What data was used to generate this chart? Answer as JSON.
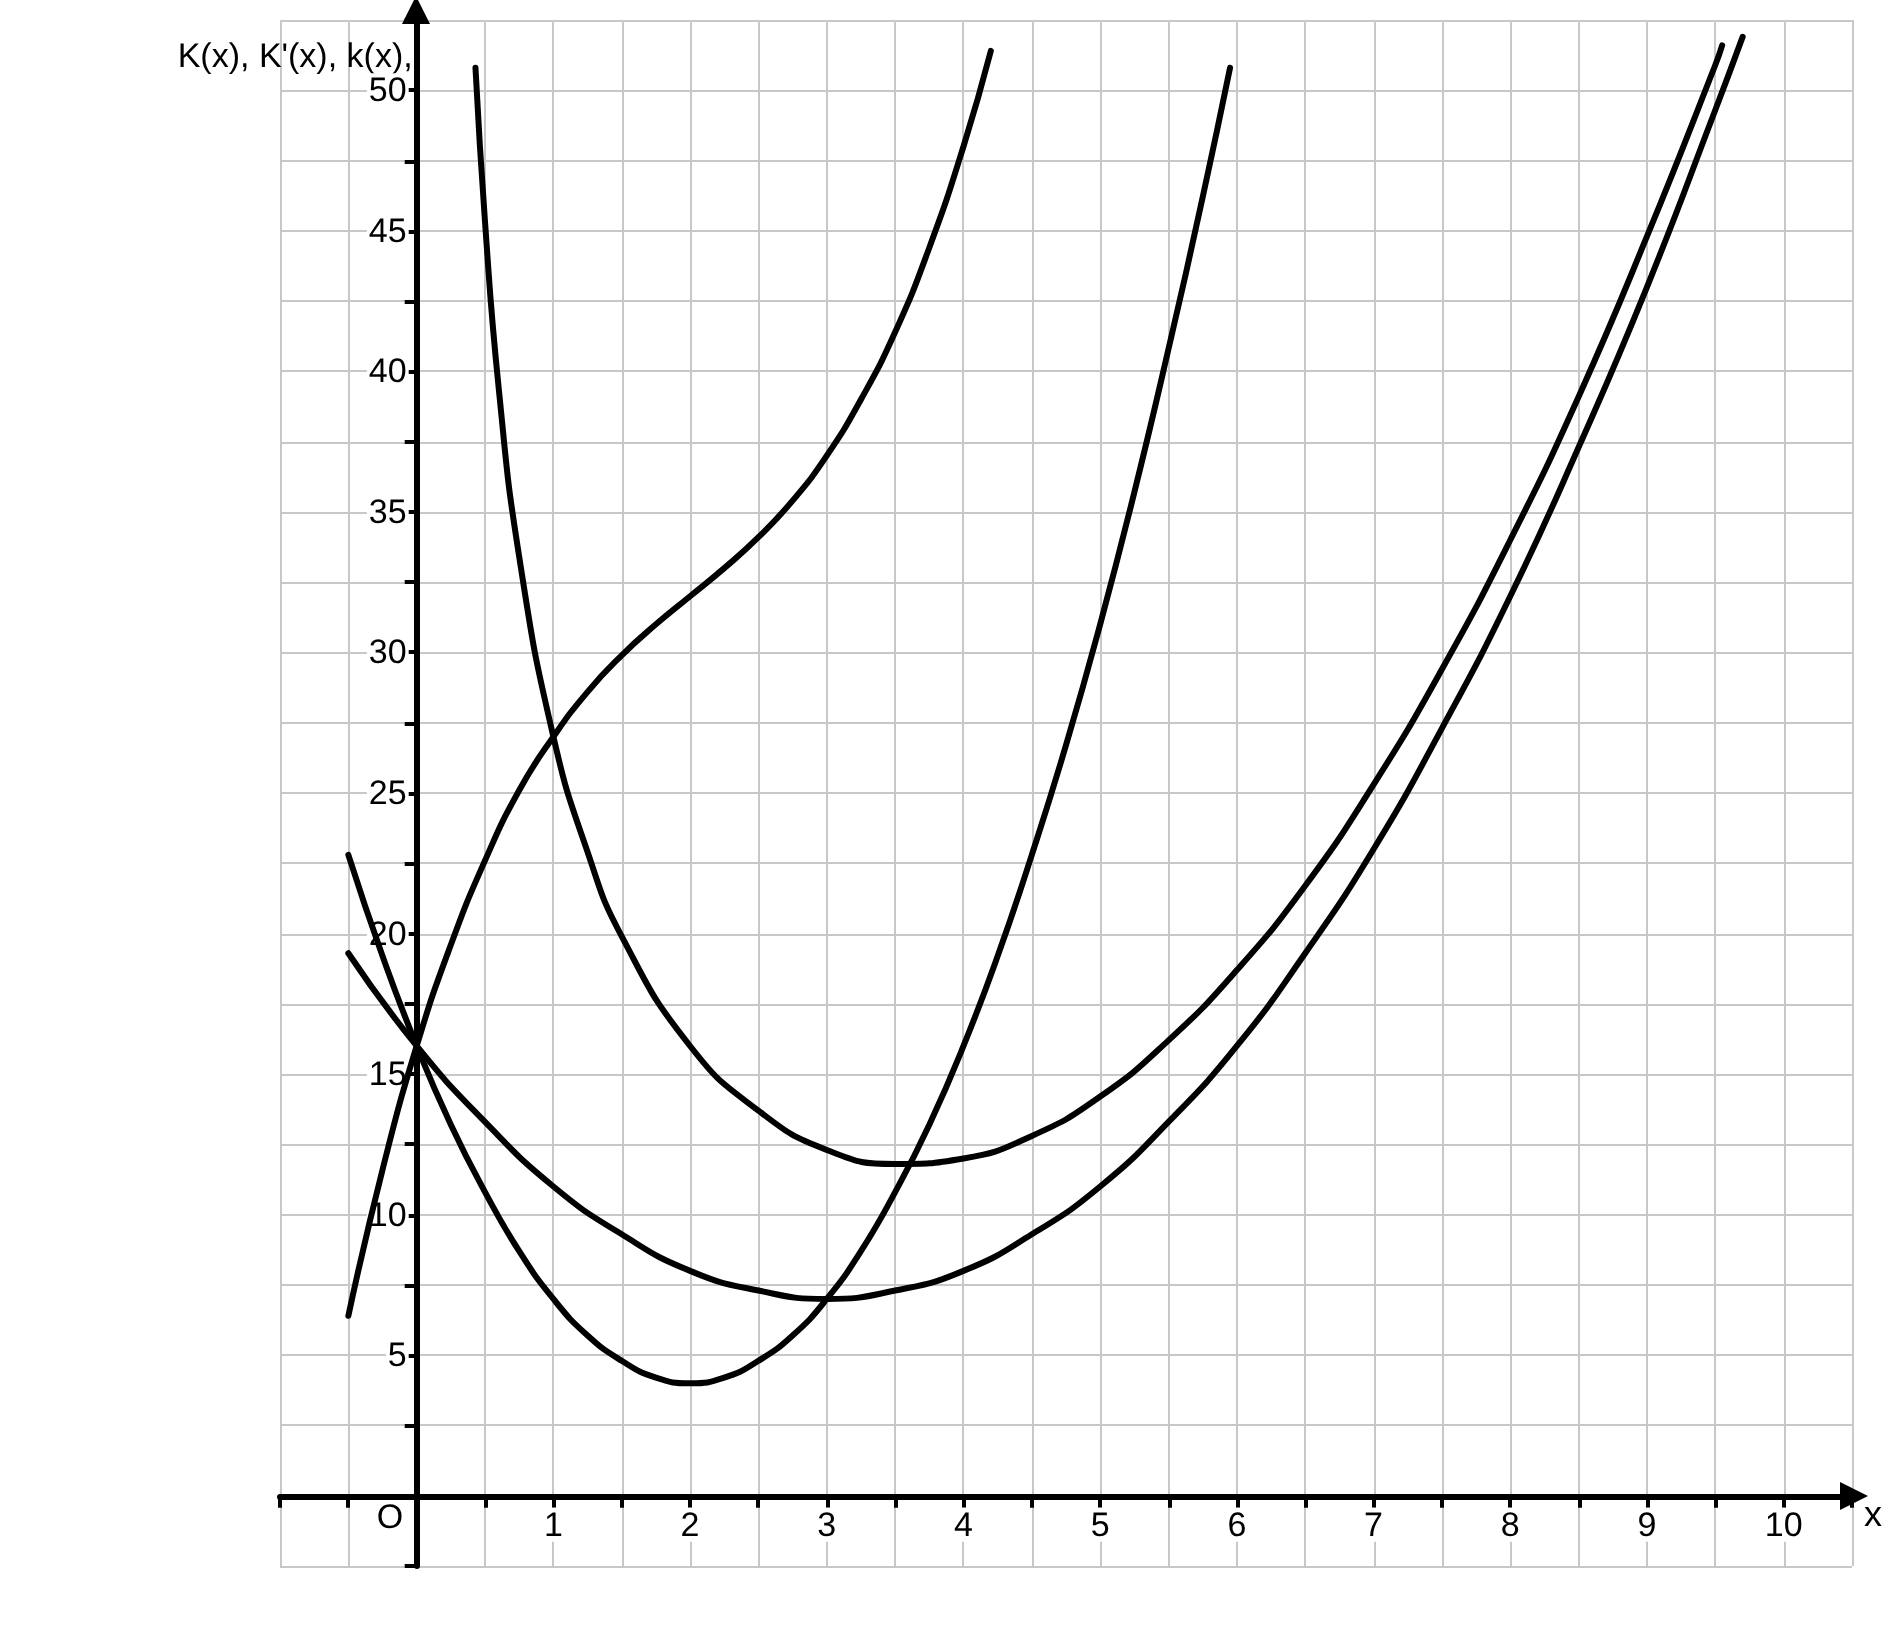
{
  "chart_data": {
    "type": "line",
    "xlabel": "x",
    "ylabel": "K(x), K'(x), k(x),",
    "xlim": [
      -1,
      10.5
    ],
    "ylim": [
      -2.5,
      52.5
    ],
    "xticks": [
      {
        "value": -1,
        "label": null
      },
      {
        "value": -0.5,
        "label": null
      },
      {
        "value": 0,
        "label": null
      },
      {
        "value": 0.5,
        "label": null
      },
      1,
      {
        "value": 1.5,
        "label": null
      },
      2,
      {
        "value": 2.5,
        "label": null
      },
      3,
      {
        "value": 3.5,
        "label": null
      },
      4,
      {
        "value": 4.5,
        "label": null
      },
      5,
      {
        "value": 5.5,
        "label": null
      },
      6,
      {
        "value": 6.5,
        "label": null
      },
      7,
      {
        "value": 7.5,
        "label": null
      },
      8,
      {
        "value": 8.5,
        "label": null
      },
      9,
      {
        "value": 9.5,
        "label": null
      },
      10,
      {
        "value": 10.5,
        "label": null
      }
    ],
    "yticks": [
      {
        "value": -2.5,
        "label": null
      },
      {
        "value": 0,
        "label": null
      },
      {
        "value": 2.5,
        "label": null
      },
      5,
      {
        "value": 7.5,
        "label": null
      },
      10,
      {
        "value": 12.5,
        "label": null
      },
      15,
      {
        "value": 17.5,
        "label": null
      },
      20,
      {
        "value": 22.5,
        "label": null
      },
      25,
      {
        "value": 27.5,
        "label": null
      },
      30,
      {
        "value": 32.5,
        "label": null
      },
      35,
      {
        "value": 37.5,
        "label": null
      },
      40,
      {
        "value": 42.5,
        "label": null
      },
      45,
      {
        "value": 47.5,
        "label": null
      },
      50,
      {
        "value": 52.5,
        "label": null
      }
    ],
    "grid": true,
    "marker": "none",
    "line_style": "solid",
    "annotations": [
      "O"
    ],
    "series": [
      {
        "color": "#000000",
        "x": [
          -0.5,
          -0.25,
          0,
          0.25,
          0.5,
          0.75,
          1,
          1.25,
          1.5,
          1.75,
          2,
          2.25,
          2.5,
          2.75,
          3,
          3.25,
          3.5,
          3.75,
          4,
          4.2
        ],
        "values": [
          6.4,
          11.6,
          16,
          19.6,
          22.6,
          25.1,
          27,
          28.6,
          29.9,
          31,
          32,
          33,
          34.1,
          35.4,
          37,
          39,
          41.4,
          44.4,
          48,
          51.4
        ]
      },
      {
        "color": "#000000",
        "x": [
          -0.5,
          -0.25,
          0,
          0.25,
          0.5,
          0.75,
          1,
          1.25,
          1.5,
          1.75,
          2,
          2.25,
          2.5,
          2.75,
          3,
          3.25,
          3.5,
          3.75,
          4,
          4.25,
          4.5,
          4.75,
          5,
          5.25,
          5.5,
          5.75,
          5.95
        ],
        "values": [
          22.8,
          19.2,
          16,
          13.2,
          10.8,
          8.7,
          7,
          5.7,
          4.8,
          4.2,
          4,
          4.2,
          4.8,
          5.7,
          7,
          8.7,
          10.8,
          13.2,
          16,
          19.2,
          22.8,
          26.7,
          31,
          35.7,
          40.8,
          46.2,
          50.8
        ]
      },
      {
        "color": "#000000",
        "x": [
          -0.5,
          0,
          0.5,
          1,
          1.5,
          2,
          2.5,
          3,
          3.5,
          4,
          4.5,
          5,
          5.5,
          6,
          6.5,
          7,
          7.5,
          8,
          8.5,
          9,
          9.5,
          9.7
        ],
        "values": [
          19.3,
          16,
          13.3,
          11,
          9.3,
          8,
          7.3,
          7,
          7.3,
          8,
          9.3,
          11,
          13.3,
          16,
          19.3,
          23,
          27.3,
          32,
          37.3,
          43,
          49.3,
          51.9
        ]
      },
      {
        "color": "#000000",
        "x": [
          0.43,
          0.5,
          0.6,
          0.75,
          1,
          1.25,
          1.5,
          2,
          2.5,
          3,
          3.5,
          4,
          4.5,
          5,
          5.5,
          6,
          6.5,
          7,
          7.5,
          8,
          8.5,
          9,
          9.5,
          9.55
        ],
        "values": [
          50.8,
          45.3,
          39.4,
          33.4,
          27,
          22.9,
          19.9,
          16,
          13.7,
          12.3,
          11.8,
          12,
          12.8,
          14.2,
          16.2,
          18.7,
          21.7,
          25.3,
          29.4,
          34,
          39.1,
          44.8,
          50.9,
          51.6
        ]
      }
    ]
  }
}
